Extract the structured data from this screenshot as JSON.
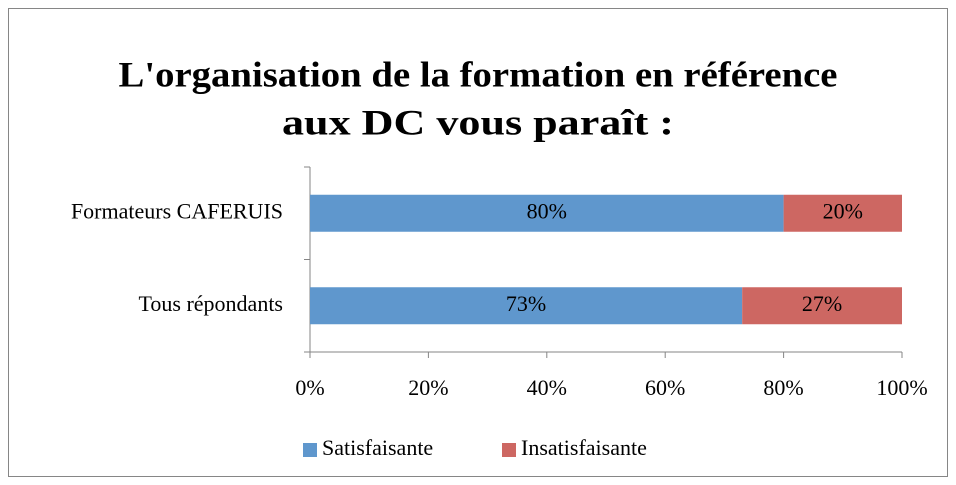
{
  "chart_data": {
    "type": "stacked-bar-horizontal",
    "title": [
      "L'organisation de la formation en référence",
      "aux DC vous paraît :"
    ],
    "categories": [
      "Formateurs CAFERUIS",
      "Tous répondants"
    ],
    "series": [
      {
        "name": "Satisfaisante",
        "color": "#5f97cd",
        "values": [
          80,
          73
        ],
        "value_labels": [
          "80%",
          "73%"
        ]
      },
      {
        "name": "Insatisfaisante",
        "color": "#cd6762",
        "values": [
          20,
          27
        ],
        "value_labels": [
          "20%",
          "27%"
        ]
      }
    ],
    "xlim": [
      0,
      100
    ],
    "xticks": [
      {
        "value": 0,
        "label": "0%"
      },
      {
        "value": 20,
        "label": "20%"
      },
      {
        "value": 40,
        "label": "40%"
      },
      {
        "value": 60,
        "label": "60%"
      },
      {
        "value": 80,
        "label": "80%"
      },
      {
        "value": 100,
        "label": "100%"
      }
    ],
    "legend": "bottom"
  }
}
